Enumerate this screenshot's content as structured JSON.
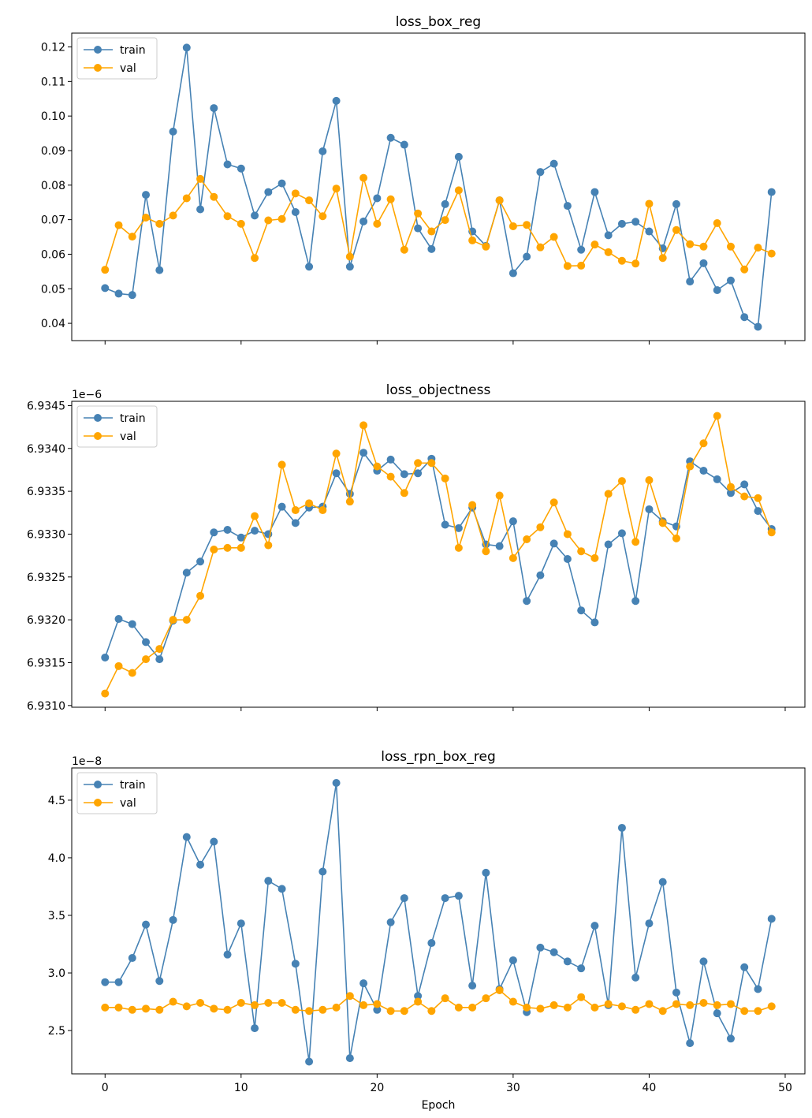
{
  "chart_data": [
    {
      "type": "line",
      "title": "loss_box_reg",
      "xlabel": "",
      "ylabel": "",
      "offset_text": "",
      "x": [
        0,
        1,
        2,
        3,
        4,
        5,
        6,
        7,
        8,
        9,
        10,
        11,
        12,
        13,
        14,
        15,
        16,
        17,
        18,
        19,
        20,
        21,
        22,
        23,
        24,
        25,
        26,
        27,
        28,
        29,
        30,
        31,
        32,
        33,
        34,
        35,
        36,
        37,
        38,
        39,
        40,
        41,
        42,
        43,
        44,
        45,
        46,
        47,
        48,
        49
      ],
      "xlim": [
        -2.45,
        51.45
      ],
      "ylim": [
        0.035,
        0.124
      ],
      "xticks": [
        0,
        10,
        20,
        30,
        40,
        50
      ],
      "xtick_labels": [],
      "yticks": [
        0.04,
        0.05,
        0.06,
        0.07,
        0.08,
        0.09,
        0.1,
        0.11,
        0.12
      ],
      "ytick_labels": [
        "0.04",
        "0.05",
        "0.06",
        "0.07",
        "0.08",
        "0.09",
        "0.10",
        "0.11",
        "0.12"
      ],
      "grid": false,
      "legend": "upper-left",
      "series": [
        {
          "name": "train",
          "color": "#4682b4",
          "values": [
            0.0502,
            0.0486,
            0.0482,
            0.0772,
            0.0554,
            0.0955,
            0.1198,
            0.073,
            0.1023,
            0.086,
            0.0848,
            0.0712,
            0.078,
            0.0805,
            0.0722,
            0.0564,
            0.0898,
            0.1044,
            0.0564,
            0.0695,
            0.0762,
            0.0937,
            0.0917,
            0.0675,
            0.0615,
            0.0745,
            0.0882,
            0.0666,
            0.0624,
            0.0756,
            0.0545,
            0.0593,
            0.0838,
            0.0862,
            0.074,
            0.0613,
            0.078,
            0.0655,
            0.0688,
            0.0694,
            0.0666,
            0.0617,
            0.0745,
            0.0521,
            0.0574,
            0.0496,
            0.0524,
            0.0418,
            0.039,
            0.078
          ]
        },
        {
          "name": "val",
          "color": "#ffa500",
          "values": [
            0.0555,
            0.0684,
            0.0651,
            0.0706,
            0.0688,
            0.0712,
            0.0762,
            0.0818,
            0.0766,
            0.071,
            0.0688,
            0.0589,
            0.0698,
            0.0702,
            0.0776,
            0.0756,
            0.071,
            0.079,
            0.0593,
            0.0821,
            0.0688,
            0.0759,
            0.0613,
            0.0718,
            0.0666,
            0.0699,
            0.0785,
            0.064,
            0.0622,
            0.0756,
            0.0681,
            0.0685,
            0.062,
            0.065,
            0.0566,
            0.0567,
            0.0628,
            0.0606,
            0.0581,
            0.0573,
            0.0746,
            0.0589,
            0.067,
            0.0629,
            0.0622,
            0.069,
            0.0622,
            0.0556,
            0.0619,
            0.0602
          ]
        }
      ]
    },
    {
      "type": "line",
      "title": "loss_objectness",
      "xlabel": "",
      "ylabel": "",
      "offset_text": "1e−6",
      "x": [
        0,
        1,
        2,
        3,
        4,
        5,
        6,
        7,
        8,
        9,
        10,
        11,
        12,
        13,
        14,
        15,
        16,
        17,
        18,
        19,
        20,
        21,
        22,
        23,
        24,
        25,
        26,
        27,
        28,
        29,
        30,
        31,
        32,
        33,
        34,
        35,
        36,
        37,
        38,
        39,
        40,
        41,
        42,
        43,
        44,
        45,
        46,
        47,
        48,
        49
      ],
      "xlim": [
        -2.45,
        51.45
      ],
      "ylim": [
        6.93098,
        6.93455
      ],
      "xticks": [
        0,
        10,
        20,
        30,
        40,
        50
      ],
      "xtick_labels": [],
      "yticks": [
        6.931,
        6.9315,
        6.932,
        6.9325,
        6.933,
        6.9335,
        6.934,
        6.9345
      ],
      "ytick_labels": [
        "6.9310",
        "6.9315",
        "6.9320",
        "6.9325",
        "6.9330",
        "6.9335",
        "6.9340",
        "6.9345"
      ],
      "grid": false,
      "legend": "upper-left",
      "series": [
        {
          "name": "train",
          "color": "#4682b4",
          "values": [
            6.93156,
            6.93201,
            6.93195,
            6.93174,
            6.93154,
            6.93199,
            6.93255,
            6.93268,
            6.93302,
            6.93305,
            6.93296,
            6.93304,
            6.933,
            6.93332,
            6.93313,
            6.93331,
            6.93332,
            6.93371,
            6.93347,
            6.93395,
            6.93374,
            6.93387,
            6.9337,
            6.93371,
            6.93388,
            6.93311,
            6.93307,
            6.93331,
            6.93288,
            6.93286,
            6.93315,
            6.93222,
            6.93252,
            6.93289,
            6.93271,
            6.93211,
            6.93197,
            6.93288,
            6.93301,
            6.93222,
            6.93329,
            6.93315,
            6.93309,
            6.93385,
            6.93374,
            6.93364,
            6.93348,
            6.93358,
            6.93327,
            6.93306
          ]
        },
        {
          "name": "val",
          "color": "#ffa500",
          "values": [
            6.93114,
            6.93146,
            6.93138,
            6.93154,
            6.93166,
            6.932,
            6.932,
            6.93228,
            6.93282,
            6.93284,
            6.93284,
            6.93321,
            6.93287,
            6.93381,
            6.93328,
            6.93336,
            6.93328,
            6.93394,
            6.93338,
            6.93427,
            6.93379,
            6.93367,
            6.93348,
            6.93383,
            6.93383,
            6.93365,
            6.93284,
            6.93334,
            6.9328,
            6.93345,
            6.93272,
            6.93294,
            6.93308,
            6.93337,
            6.933,
            6.9328,
            6.93272,
            6.93347,
            6.93362,
            6.93291,
            6.93363,
            6.93313,
            6.93295,
            6.93379,
            6.93406,
            6.93438,
            6.93355,
            6.93344,
            6.93342,
            6.93302
          ]
        }
      ]
    },
    {
      "type": "line",
      "title": "loss_rpn_box_reg",
      "xlabel": "Epoch",
      "ylabel": "",
      "offset_text": "1e−8",
      "x": [
        0,
        1,
        2,
        3,
        4,
        5,
        6,
        7,
        8,
        9,
        10,
        11,
        12,
        13,
        14,
        15,
        16,
        17,
        18,
        19,
        20,
        21,
        22,
        23,
        24,
        25,
        26,
        27,
        28,
        29,
        30,
        31,
        32,
        33,
        34,
        35,
        36,
        37,
        38,
        39,
        40,
        41,
        42,
        43,
        44,
        45,
        46,
        47,
        48,
        49
      ],
      "xlim": [
        -2.45,
        51.45
      ],
      "ylim": [
        2.124,
        4.78
      ],
      "xticks": [
        0,
        10,
        20,
        30,
        40,
        50
      ],
      "xtick_labels": [
        "0",
        "10",
        "20",
        "30",
        "40",
        "50"
      ],
      "yticks": [
        2.5,
        3.0,
        3.5,
        4.0,
        4.5
      ],
      "ytick_labels": [
        "2.5",
        "3.0",
        "3.5",
        "4.0",
        "4.5"
      ],
      "grid": false,
      "legend": "upper-left",
      "series": [
        {
          "name": "train",
          "color": "#4682b4",
          "values": [
            2.92,
            2.92,
            3.13,
            3.42,
            2.93,
            3.46,
            4.18,
            3.94,
            4.14,
            3.16,
            3.43,
            2.52,
            3.8,
            3.73,
            3.08,
            2.23,
            3.88,
            4.65,
            2.26,
            2.91,
            2.68,
            3.44,
            3.65,
            2.8,
            3.26,
            3.65,
            3.67,
            2.89,
            3.87,
            2.86,
            3.11,
            2.66,
            3.22,
            3.18,
            3.1,
            3.04,
            3.41,
            2.72,
            4.26,
            2.96,
            3.43,
            3.79,
            2.83,
            2.39,
            3.1,
            2.65,
            2.43,
            3.05,
            2.86,
            3.47
          ]
        },
        {
          "name": "val",
          "color": "#ffa500",
          "values": [
            2.7,
            2.7,
            2.68,
            2.69,
            2.68,
            2.75,
            2.71,
            2.74,
            2.69,
            2.68,
            2.74,
            2.72,
            2.74,
            2.74,
            2.68,
            2.67,
            2.68,
            2.7,
            2.8,
            2.72,
            2.73,
            2.67,
            2.67,
            2.75,
            2.67,
            2.78,
            2.7,
            2.7,
            2.78,
            2.85,
            2.75,
            2.7,
            2.69,
            2.72,
            2.7,
            2.79,
            2.7,
            2.73,
            2.71,
            2.68,
            2.73,
            2.67,
            2.73,
            2.72,
            2.74,
            2.72,
            2.73,
            2.67,
            2.67,
            2.71
          ]
        }
      ]
    }
  ]
}
